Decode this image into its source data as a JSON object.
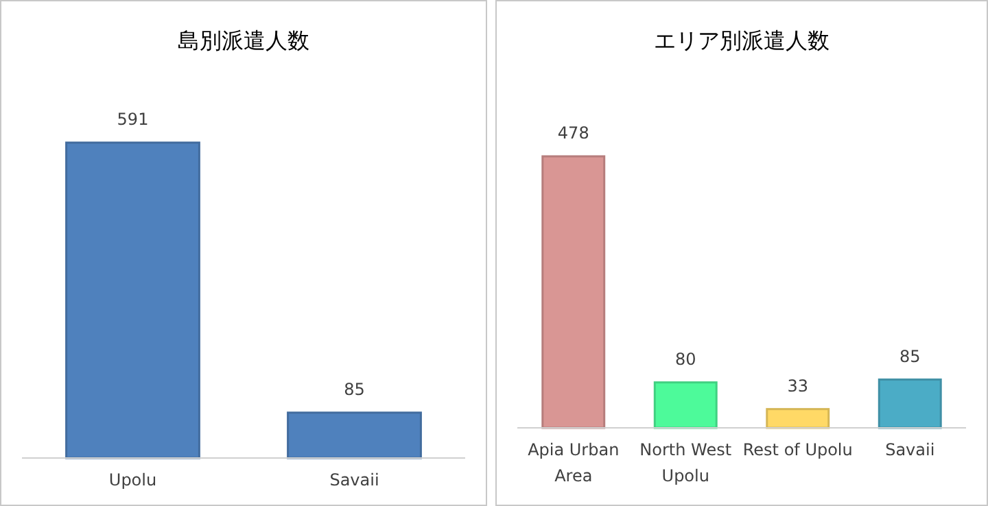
{
  "chart_data": [
    {
      "type": "bar",
      "title": "島別派遣人数",
      "categories": [
        "Upolu",
        "Savaii"
      ],
      "values": [
        591,
        85
      ],
      "colors": [
        "#4f81bd",
        "#4f81bd"
      ],
      "data_labels": true
    },
    {
      "type": "bar",
      "title": "エリア別派遣人数",
      "categories": [
        "Apia Urban Area",
        "North West Upolu",
        "Rest of Upolu",
        "Savaii"
      ],
      "values": [
        478,
        80,
        33,
        85
      ],
      "colors": [
        "#d99694",
        "#4dfa9a",
        "#ffd966",
        "#4bacc6"
      ],
      "data_labels": true
    }
  ]
}
